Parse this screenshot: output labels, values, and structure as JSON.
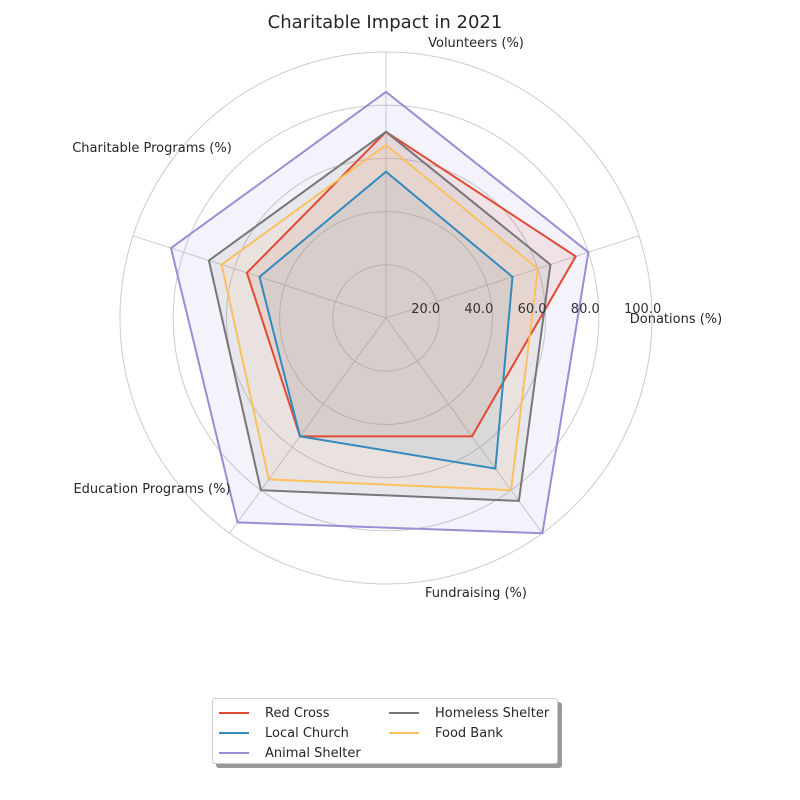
{
  "chart_data": {
    "type": "radar",
    "title": "Charitable Impact in 2021",
    "axes": [
      "Donations (%)",
      "Volunteers (%)",
      "Charitable Programs (%)",
      "Education Programs (%)",
      "Fundraising (%)"
    ],
    "rlim": [
      0,
      100
    ],
    "r_ticks": [
      "20.0",
      "40.0",
      "60.0",
      "80.0",
      "100.0"
    ],
    "r_tick_values": [
      20,
      40,
      60,
      80,
      100
    ],
    "grid": true,
    "legend_position": "bottom-center",
    "series": [
      {
        "name": "Red Cross",
        "color": "#e24a33",
        "values": [
          75,
          70,
          55,
          55,
          55
        ]
      },
      {
        "name": "Local Church",
        "color": "#348abd",
        "values": [
          50,
          55,
          50,
          55,
          70
        ]
      },
      {
        "name": "Animal Shelter",
        "color": "#988ed5",
        "values": [
          80,
          85,
          85,
          95,
          100
        ]
      },
      {
        "name": "Homeless Shelter",
        "color": "#777777",
        "values": [
          65,
          70,
          70,
          80,
          85
        ]
      },
      {
        "name": "Food Bank",
        "color": "#fbc15e",
        "values": [
          60,
          65,
          65,
          75,
          80
        ]
      }
    ]
  }
}
